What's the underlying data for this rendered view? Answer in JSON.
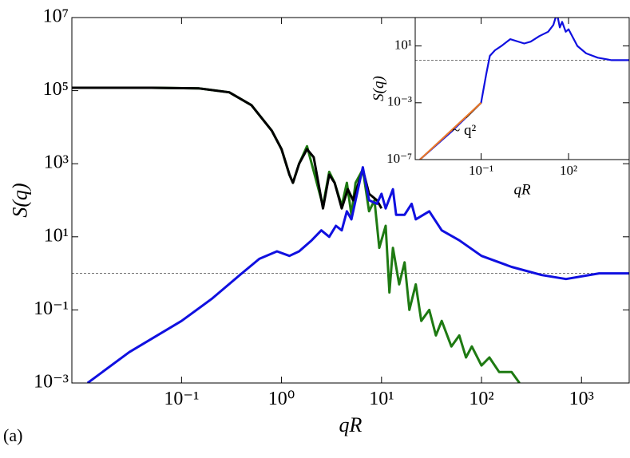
{
  "chart_data": [
    {
      "type": "line",
      "panel_label": "(a)",
      "xlabel": "qR",
      "ylabel": "S(q)",
      "xscale": "log",
      "yscale": "log",
      "xlim": [
        0.008,
        3000
      ],
      "ylim": [
        0.001,
        10000000
      ],
      "xticks": [
        {
          "value": 0.1,
          "label": "10⁻¹"
        },
        {
          "value": 1,
          "label": "10⁰"
        },
        {
          "value": 10,
          "label": "10¹"
        },
        {
          "value": 100,
          "label": "10²"
        },
        {
          "value": 1000,
          "label": "10³"
        }
      ],
      "yticks": [
        {
          "value": 0.001,
          "label": "10⁻³"
        },
        {
          "value": 0.1,
          "label": "10⁻¹"
        },
        {
          "value": 10,
          "label": "10¹"
        },
        {
          "value": 1000,
          "label": "10³"
        },
        {
          "value": 100000,
          "label": "10⁵"
        },
        {
          "value": 10000000,
          "label": "10⁷"
        }
      ],
      "hline": 1,
      "series": [
        {
          "color": "#1e7a12",
          "x": [
            0.008,
            0.05,
            0.15,
            0.3,
            0.5,
            0.8,
            1.0,
            1.2,
            1.3,
            1.5,
            1.8,
            2.6,
            3.0,
            3.4,
            4.0,
            4.5,
            5.0,
            5.5,
            6.5,
            7.5,
            8.5,
            9.5,
            11,
            12,
            13,
            15,
            17,
            19,
            22,
            25,
            30,
            35,
            40,
            50,
            60,
            70,
            80,
            100,
            120,
            150,
            200,
            240
          ],
          "values": [
            120000,
            120000,
            115000,
            90000,
            40000,
            8000,
            2500,
            500,
            300,
            1000,
            3000,
            70,
            600,
            300,
            70,
            300,
            40,
            300,
            700,
            50,
            100,
            5,
            20,
            0.3,
            5,
            0.5,
            2,
            0.1,
            0.5,
            0.05,
            0.1,
            0.02,
            0.05,
            0.01,
            0.02,
            0.005,
            0.01,
            0.003,
            0.005,
            0.002,
            0.002,
            0.001
          ]
        },
        {
          "color": "#000000",
          "x": [
            0.008,
            0.05,
            0.15,
            0.3,
            0.5,
            0.8,
            1.0,
            1.2,
            1.3,
            1.5,
            1.8,
            2.1,
            2.6,
            3.0,
            3.4,
            4.0,
            4.6,
            5.2,
            6.5,
            7.5,
            9,
            10
          ],
          "values": [
            120000,
            120000,
            115000,
            90000,
            40000,
            8000,
            2500,
            500,
            300,
            1000,
            2500,
            1500,
            60,
            500,
            300,
            60,
            200,
            100,
            700,
            150,
            100,
            60
          ]
        },
        {
          "color": "#1010e0",
          "x": [
            0.0115,
            0.03,
            0.1,
            0.2,
            0.4,
            0.6,
            0.9,
            1.2,
            1.5,
            2,
            2.5,
            3.0,
            3.5,
            4,
            4.5,
            5,
            6.5,
            7.5,
            9,
            10,
            11,
            13,
            14,
            17,
            20,
            22,
            30,
            40,
            60,
            100,
            200,
            400,
            700,
            1500,
            3000
          ],
          "values": [
            0.001,
            0.007,
            0.05,
            0.2,
            1,
            2.5,
            4,
            3,
            4,
            8,
            15,
            10,
            20,
            15,
            50,
            30,
            800,
            100,
            80,
            150,
            60,
            200,
            40,
            40,
            80,
            30,
            50,
            15,
            8,
            3,
            1.5,
            0.9,
            0.7,
            1,
            1
          ]
        }
      ]
    },
    {
      "type": "line",
      "xlabel": "qR",
      "ylabel": "S(q)",
      "annotation": "~ q²",
      "xscale": "log",
      "yscale": "log",
      "xlim": [
        0.00055,
        12000
      ],
      "ylim": [
        1e-07,
        1000
      ],
      "xticks": [
        {
          "value": 0.1,
          "label": "10⁻¹"
        },
        {
          "value": 100,
          "label": "10²"
        }
      ],
      "yticks": [
        {
          "value": 1e-07,
          "label": "10⁻⁷"
        },
        {
          "value": 0.001,
          "label": "10⁻³"
        },
        {
          "value": 10,
          "label": "10¹"
        }
      ],
      "hline": 1,
      "series": [
        {
          "color": "#1010e0",
          "x": [
            0.0008,
            0.01,
            0.1,
            0.15,
            0.2,
            0.3,
            0.5,
            1,
            3,
            5,
            10,
            20,
            30,
            40,
            50,
            60,
            80,
            100,
            200,
            400,
            1000,
            3000,
            12000
          ],
          "values": [
            1e-07,
            1e-05,
            0.001,
            0.1,
            2,
            5,
            10,
            30,
            15,
            20,
            50,
            100,
            300,
            2000,
            200,
            500,
            100,
            150,
            10,
            3,
            1.5,
            1,
            1
          ]
        },
        {
          "color": "#000000",
          "x": [
            0.03,
            0.1
          ],
          "values": [
            9e-05,
            0.001
          ]
        },
        {
          "color": "#e8782a",
          "x": [
            0.0008,
            0.1
          ],
          "values": [
            1e-07,
            0.001
          ]
        }
      ]
    }
  ]
}
